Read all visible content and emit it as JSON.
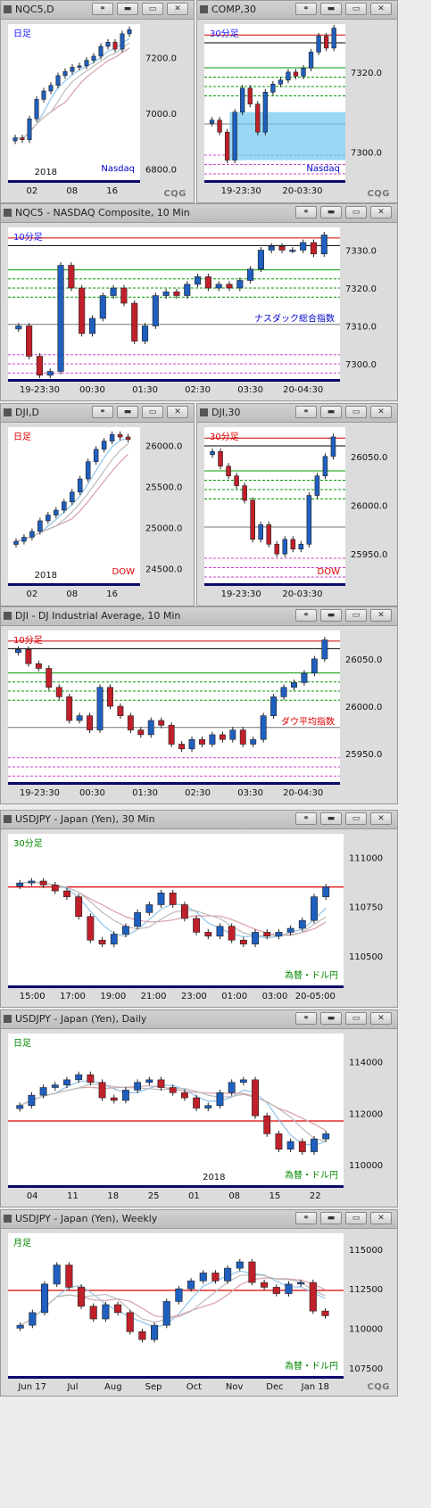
{
  "panels": [
    {
      "id": "p1",
      "title": "NQC5,D",
      "period": "日足",
      "period_color": "#1a1aff",
      "watermark": "Nasdaq",
      "wm_color": "#0000cc",
      "yticks": [
        "7200.0",
        "7000.0",
        "6800.0"
      ],
      "yvals": [
        7200,
        7000,
        6800
      ],
      "xticks": [
        "02",
        "08",
        "16"
      ],
      "year": "2018",
      "cqg": "CQG"
    },
    {
      "id": "p2",
      "title": "COMP,30",
      "period": "30分足",
      "period_color": "#1a1aff",
      "watermark": "Nasdaq",
      "wm_color": "#0000cc",
      "yticks": [
        "7320.0",
        "7300.0"
      ],
      "yvals": [
        7320,
        7300
      ],
      "xticks": [
        "19-23:30",
        "20-03:30"
      ],
      "cqg": "CQG"
    },
    {
      "id": "p3",
      "title": "NQC5 - NASDAQ Composite, 10 Min",
      "period": "10分足",
      "period_color": "#1a1aff",
      "watermark": "ナスダック総合指数",
      "wm_color": "#0000cc",
      "yticks": [
        "7330.0",
        "7320.0",
        "7310.0",
        "7300.0"
      ],
      "yvals": [
        7330,
        7320,
        7310,
        7300
      ],
      "xticks": [
        "19-23:30",
        "00:30",
        "01:30",
        "02:30",
        "03:30",
        "20-04:30"
      ]
    },
    {
      "id": "p4",
      "title": "DJI,D",
      "period": "日足",
      "period_color": "#dd0000",
      "watermark": "DOW",
      "wm_color": "#dd0000",
      "yticks": [
        "26000.0",
        "25500.0",
        "25000.0",
        "24500.0"
      ],
      "yvals": [
        26000,
        25500,
        25000,
        24500
      ],
      "xticks": [
        "02",
        "08",
        "16"
      ],
      "year": "2018",
      "cqg": ""
    },
    {
      "id": "p5",
      "title": "DJI,30",
      "period": "30分足",
      "period_color": "#dd0000",
      "watermark": "DOW",
      "wm_color": "#dd0000",
      "yticks": [
        "26050.0",
        "26000.0",
        "25950.0"
      ],
      "yvals": [
        26050,
        26000,
        25950
      ],
      "xticks": [
        "19-23:30",
        "20-03:30"
      ],
      "cqg": ""
    },
    {
      "id": "p6",
      "title": "DJI - DJ Industrial Average, 10 Min",
      "period": "10分足",
      "period_color": "#dd0000",
      "watermark": "ダウ平均指数",
      "wm_color": "#dd0000",
      "yticks": [
        "26050.0",
        "26000.0",
        "25950.0"
      ],
      "yvals": [
        26050,
        26000,
        25950
      ],
      "xticks": [
        "19-23:30",
        "00:30",
        "01:30",
        "02:30",
        "03:30",
        "20-04:30"
      ]
    },
    {
      "id": "p7",
      "title": "USDJPY - Japan (Yen), 30 Min",
      "period": "30分足",
      "period_color": "#008800",
      "watermark": "為替・ドル円",
      "wm_color": "#008800",
      "yticks": [
        "111000",
        "110750",
        "110500"
      ],
      "yvals": [
        111000,
        110750,
        110500
      ],
      "xticks": [
        "15:00",
        "17:00",
        "19:00",
        "21:00",
        "23:00",
        "01:00",
        "03:00",
        "20-05:00"
      ]
    },
    {
      "id": "p8",
      "title": "USDJPY - Japan (Yen), Daily",
      "period": "日足",
      "period_color": "#008800",
      "watermark": "為替・ドル円",
      "wm_color": "#008800",
      "yticks": [
        "114000",
        "112000",
        "110000"
      ],
      "yvals": [
        114000,
        112000,
        110000
      ],
      "xticks": [
        "04",
        "11",
        "18",
        "25",
        "01",
        "08",
        "15",
        "22"
      ],
      "year": "2018"
    },
    {
      "id": "p9",
      "title": "USDJPY - Japan (Yen), Weekly",
      "period": "月足",
      "period_color": "#008800",
      "watermark": "為替・ドル円",
      "wm_color": "#008800",
      "yticks": [
        "115000",
        "112500",
        "110000",
        "107500"
      ],
      "yvals": [
        115000,
        112500,
        110000,
        107500
      ],
      "xticks": [
        "Jun 17",
        "Jul",
        "Aug",
        "Sep",
        "Oct",
        "Nov",
        "Dec",
        "Jan 18"
      ],
      "cqg": "CQG"
    }
  ],
  "chart_data": [
    {
      "type": "candlestick",
      "panel": "p1",
      "ylim": [
        6760,
        7320
      ],
      "close": [
        6912,
        6905,
        6980,
        7050,
        7080,
        7100,
        7135,
        7150,
        7165,
        7170,
        7190,
        7205,
        7240,
        7255,
        7230,
        7285,
        7300
      ]
    },
    {
      "type": "candlestick",
      "panel": "p2",
      "ylim": [
        7293,
        7332
      ],
      "close": [
        7308,
        7305,
        7298,
        7310,
        7316,
        7312,
        7305,
        7315,
        7317,
        7318,
        7320,
        7319,
        7321,
        7325,
        7329,
        7326,
        7331
      ]
    },
    {
      "type": "candlestick",
      "panel": "p3",
      "ylim": [
        7296,
        7336
      ],
      "close": [
        7310,
        7302,
        7297,
        7298,
        7326,
        7320,
        7308,
        7312,
        7318,
        7320,
        7316,
        7306,
        7310,
        7318,
        7319,
        7318,
        7321,
        7323,
        7320,
        7321,
        7320,
        7322,
        7325,
        7330,
        7331,
        7330,
        7330,
        7332,
        7329,
        7334
      ]
    },
    {
      "type": "candlestick",
      "panel": "p4",
      "ylim": [
        24320,
        26220
      ],
      "close": [
        24830,
        24880,
        24950,
        25080,
        25150,
        25210,
        25310,
        25430,
        25590,
        25800,
        25950,
        26050,
        26130,
        26100,
        26070
      ]
    },
    {
      "type": "candlestick",
      "panel": "p5",
      "ylim": [
        25920,
        26080
      ],
      "close": [
        26055,
        26040,
        26030,
        26020,
        26005,
        25965,
        25980,
        25960,
        25950,
        25965,
        25955,
        25960,
        26010,
        26030,
        26050,
        26070
      ]
    },
    {
      "type": "candlestick",
      "panel": "p6",
      "ylim": [
        25920,
        26080
      ],
      "close": [
        26060,
        26045,
        26040,
        26020,
        26010,
        25985,
        25990,
        25975,
        26020,
        26000,
        25990,
        25975,
        25970,
        25985,
        25980,
        25960,
        25955,
        25965,
        25960,
        25970,
        25965,
        25975,
        25960,
        25965,
        25990,
        26010,
        26020,
        26025,
        26035,
        26050,
        26070
      ]
    },
    {
      "type": "candlestick",
      "panel": "p7",
      "ylim": [
        110350,
        111120
      ],
      "close": [
        110870,
        110880,
        110860,
        110830,
        110800,
        110700,
        110580,
        110560,
        110610,
        110650,
        110720,
        110760,
        110820,
        110760,
        110690,
        110620,
        110600,
        110650,
        110580,
        110560,
        110620,
        110600,
        110620,
        110640,
        110680,
        110800,
        110850
      ]
    },
    {
      "type": "candlestick",
      "panel": "p8",
      "ylim": [
        109200,
        115100
      ],
      "close": [
        112300,
        112700,
        113000,
        113100,
        113300,
        113500,
        113200,
        112600,
        112500,
        112900,
        113200,
        113300,
        113000,
        112800,
        112600,
        112200,
        112300,
        112800,
        113200,
        113300,
        111900,
        111200,
        110600,
        110900,
        110500,
        111000,
        111200
      ]
    },
    {
      "type": "candlestick",
      "panel": "p9",
      "ylim": [
        107000,
        116000
      ],
      "close": [
        110200,
        111000,
        112800,
        114000,
        112600,
        111400,
        110600,
        111500,
        111000,
        109800,
        109300,
        110200,
        111700,
        112500,
        113000,
        113500,
        113000,
        113800,
        114200,
        112900,
        112600,
        112200,
        112800,
        112900,
        111100,
        110800
      ]
    }
  ]
}
